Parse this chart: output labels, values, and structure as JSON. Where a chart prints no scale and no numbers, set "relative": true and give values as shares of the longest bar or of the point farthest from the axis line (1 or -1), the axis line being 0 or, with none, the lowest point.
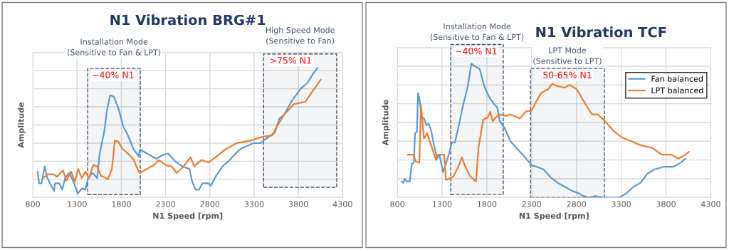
{
  "chart_data": [
    {
      "type": "line",
      "title": "N1 Vibration BRG#1",
      "xlabel": "N1 Speed [rpm]",
      "ylabel": "Amplitude",
      "relative": true,
      "xlim": [
        800,
        4300
      ],
      "xticks": [
        800,
        1300,
        1800,
        2300,
        2800,
        3300,
        3800,
        4300
      ],
      "grid": true,
      "legend": false,
      "annotations": [
        "Installation Mode\n(Sensitive to Fan & LPT)",
        "High Speed Mode\n(Sensitive to Fan)"
      ],
      "bands": [
        {
          "axis": "x",
          "from": 1420,
          "to": 2014,
          "label": "~40% N1",
          "color": "#44546a"
        },
        {
          "axis": "x",
          "from": 3407,
          "to": 4233,
          "label": ">75% N1",
          "color": "#44546a"
        }
      ],
      "series": [
        {
          "color": "#5b9bd5",
          "x": [
            853,
            872,
            899,
            934,
            960,
            993,
            1041,
            1051,
            1099,
            1132,
            1166,
            1212,
            1260,
            1308,
            1353,
            1394,
            1426,
            1474,
            1527,
            1554,
            1607,
            1634,
            1674,
            1714,
            1767,
            1821,
            1874,
            1941,
            1995,
            2009,
            2115,
            2195,
            2276,
            2329,
            2409,
            2489,
            2570,
            2597,
            2637,
            2677,
            2717,
            2784,
            2810,
            2864,
            2944,
            3025,
            3105,
            3158,
            3292,
            3372,
            3426,
            3533,
            3586,
            3640,
            3720,
            3773,
            3827,
            3907,
            3960,
            4014
          ],
          "values": [
            0.2,
            0.11,
            0.11,
            0.24,
            0.16,
            0.11,
            0.05,
            0.11,
            0.11,
            0.06,
            0.15,
            0.19,
            0.12,
            0.03,
            0.07,
            0.06,
            0.15,
            0.19,
            0.15,
            0.33,
            0.51,
            0.66,
            0.79,
            0.78,
            0.69,
            0.55,
            0.48,
            0.37,
            0.32,
            0.37,
            0.33,
            0.3,
            0.33,
            0.34,
            0.28,
            0.24,
            0.22,
            0.13,
            0.06,
            0.06,
            0.11,
            0.11,
            0.09,
            0.16,
            0.24,
            0.29,
            0.35,
            0.38,
            0.42,
            0.42,
            0.45,
            0.5,
            0.61,
            0.64,
            0.74,
            0.79,
            0.84,
            0.89,
            0.95,
            1.0
          ]
        },
        {
          "color": "#ed7d31",
          "x": [
            918,
            966,
            1033,
            1073,
            1140,
            1180,
            1233,
            1273,
            1313,
            1353,
            1394,
            1434,
            1482,
            1527,
            1567,
            1648,
            1693,
            1727,
            1767,
            1808,
            1874,
            1941,
            1995,
            2009,
            2089,
            2169,
            2222,
            2302,
            2369,
            2423,
            2489,
            2583,
            2623,
            2704,
            2784,
            2864,
            2971,
            3105,
            3265,
            3399,
            3506,
            3559,
            3640,
            3747,
            3880,
            3960,
            4054
          ],
          "values": [
            0.15,
            0.18,
            0.18,
            0.16,
            0.21,
            0.13,
            0.2,
            0.12,
            0.22,
            0.15,
            0.2,
            0.15,
            0.25,
            0.24,
            0.17,
            0.14,
            0.22,
            0.44,
            0.43,
            0.38,
            0.34,
            0.29,
            0.2,
            0.19,
            0.22,
            0.25,
            0.29,
            0.25,
            0.24,
            0.19,
            0.23,
            0.31,
            0.24,
            0.29,
            0.27,
            0.31,
            0.37,
            0.42,
            0.44,
            0.47,
            0.48,
            0.55,
            0.64,
            0.72,
            0.74,
            0.82,
            0.91
          ]
        }
      ]
    },
    {
      "type": "line",
      "title": "N1 Vibration TCF",
      "xlabel": "N1 Speed [rpm]",
      "ylabel": "Amplitude",
      "relative": true,
      "xlim": [
        800,
        4300
      ],
      "xticks": [
        800,
        1300,
        1800,
        2300,
        2800,
        3300,
        3800,
        4300
      ],
      "grid": true,
      "legend": "top right",
      "annotations": [
        "Installation Mode\n(Sensitive to Fan & LPT)",
        "LPT Mode\n(Sensitive to LPT)"
      ],
      "bands": [
        {
          "axis": "x",
          "from": 1397,
          "to": 1983,
          "label": "~40% N1",
          "color": "#44546a"
        },
        {
          "axis": "x",
          "from": 2287,
          "to": 3111,
          "label": "50-65% N1",
          "color": "#44546a"
        }
      ],
      "series": [
        {
          "name": "Fan balanced",
          "color": "#5b9bd5",
          "x": [
            848,
            866,
            882,
            906,
            940,
            961,
            985,
            998,
            1019,
            1032,
            1051,
            1072,
            1098,
            1125,
            1151,
            1178,
            1204,
            1244,
            1270,
            1310,
            1336,
            1371,
            1408,
            1442,
            1481,
            1535,
            1587,
            1627,
            1666,
            1719,
            1772,
            1825,
            1878,
            1917,
            1944,
            1997,
            2063,
            2142,
            2214,
            2300,
            2353,
            2432,
            2512,
            2591,
            2670,
            2749,
            2829,
            2882,
            2934,
            3014,
            3093,
            3278,
            3357,
            3436,
            3516,
            3595,
            3674,
            3779,
            3885,
            3964,
            4017
          ],
          "values": [
            0.12,
            0.11,
            0.14,
            0.12,
            0.12,
            0.25,
            0.26,
            0.48,
            0.49,
            0.78,
            0.72,
            0.6,
            0.59,
            0.54,
            0.55,
            0.5,
            0.41,
            0.29,
            0.32,
            0.19,
            0.24,
            0.31,
            0.41,
            0.41,
            0.52,
            0.69,
            0.83,
            1.0,
            0.98,
            0.96,
            0.83,
            0.75,
            0.7,
            0.67,
            0.57,
            0.52,
            0.42,
            0.36,
            0.31,
            0.24,
            0.23,
            0.21,
            0.15,
            0.11,
            0.08,
            0.05,
            0.03,
            0.01,
            0,
            0.01,
            0,
            0,
            0.03,
            0.08,
            0.11,
            0.18,
            0.21,
            0.23,
            0.23,
            0.26,
            0.29
          ]
        },
        {
          "name": "LPT balanced",
          "color": "#ed7d31",
          "x": [
            914,
            980,
            1006,
            1046,
            1064,
            1098,
            1133,
            1178,
            1231,
            1257,
            1323,
            1344,
            1376,
            1429,
            1481,
            1521,
            1559,
            1613,
            1679,
            1706,
            1759,
            1811,
            1838,
            1865,
            1931,
            2010,
            2063,
            2168,
            2234,
            2300,
            2353,
            2406,
            2485,
            2532,
            2591,
            2670,
            2723,
            2802,
            2855,
            2908,
            2974,
            3040,
            3119,
            3225,
            3304,
            3410,
            3516,
            3648,
            3753,
            3859,
            3938,
            4017,
            4057
          ],
          "values": [
            0.32,
            0.32,
            0.27,
            0.26,
            0.69,
            0.44,
            0.48,
            0.39,
            0.28,
            0.32,
            0.32,
            0.13,
            0.14,
            0.16,
            0.23,
            0.3,
            0.23,
            0.16,
            0.12,
            0.37,
            0.58,
            0.6,
            0.64,
            0.57,
            0.62,
            0.61,
            0.62,
            0.59,
            0.64,
            0.65,
            0.72,
            0.78,
            0.81,
            0.85,
            0.83,
            0.82,
            0.84,
            0.81,
            0.75,
            0.69,
            0.62,
            0.62,
            0.57,
            0.49,
            0.45,
            0.42,
            0.39,
            0.37,
            0.32,
            0.32,
            0.29,
            0.32,
            0.34
          ]
        }
      ]
    }
  ]
}
